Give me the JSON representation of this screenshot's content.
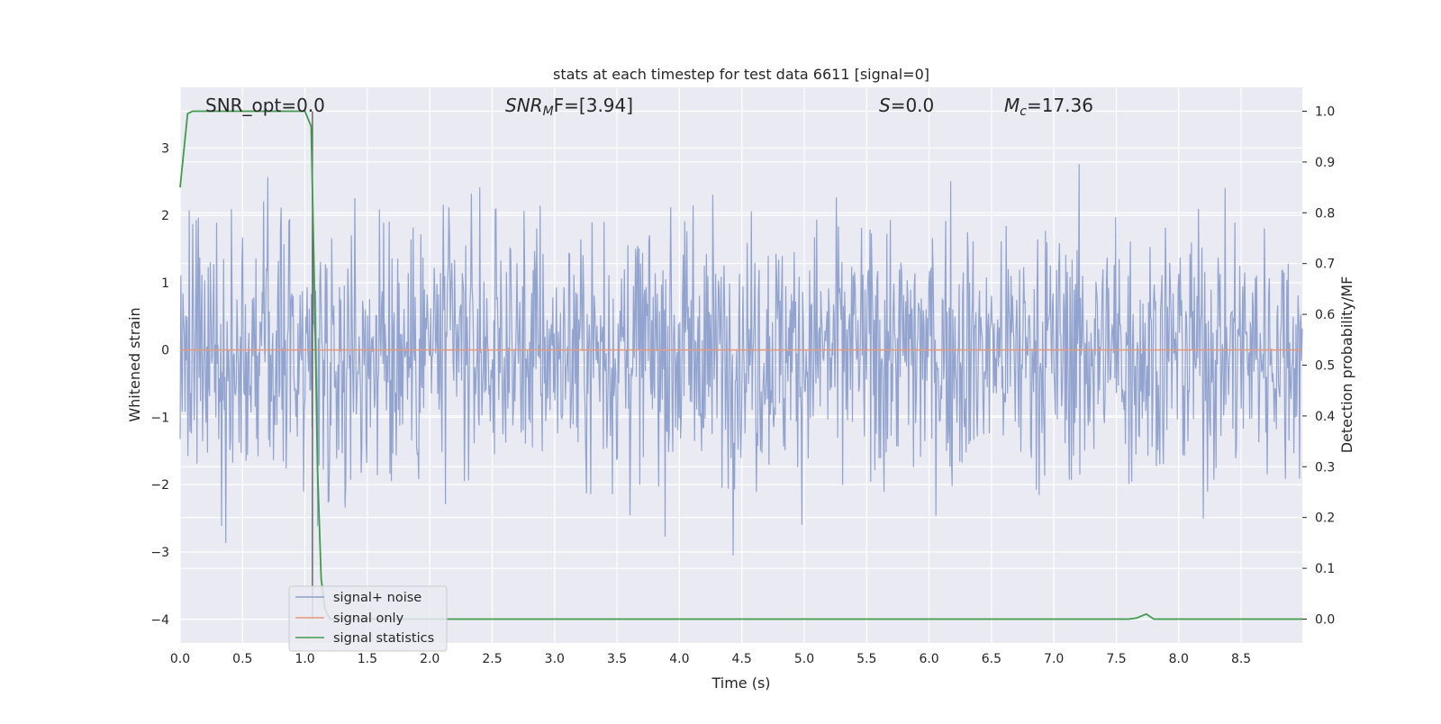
{
  "chart_data": {
    "type": "line",
    "title": "stats at each timestep for test data 6611 [signal=0]",
    "xlabel": "Time (s)",
    "ylabel_left": "Whitened strain",
    "ylabel_right": "Detection probability/MF",
    "xlim": [
      0.0,
      8.99
    ],
    "ylim_left": [
      -4.35,
      3.9
    ],
    "ylim_right": [
      -0.047,
      1.047
    ],
    "x_ticks": [
      "0.0",
      "0.5",
      "1.0",
      "1.5",
      "2.0",
      "2.5",
      "3.0",
      "3.5",
      "4.0",
      "4.5",
      "5.0",
      "5.5",
      "6.0",
      "6.5",
      "7.0",
      "7.5",
      "8.0",
      "8.5"
    ],
    "y_ticks_left": [
      "3",
      "2",
      "1",
      "0",
      "−1",
      "−2",
      "−3",
      "−4"
    ],
    "y_ticks_right": [
      "1.0",
      "0.9",
      "0.8",
      "0.7",
      "0.6",
      "0.5",
      "0.4",
      "0.3",
      "0.2",
      "0.1",
      "0.0"
    ],
    "grid": true,
    "legend_position": "lower-left",
    "annotations": {
      "snr_opt": "SNR_opt=0.0",
      "snr_mf_base": "SNR",
      "snr_mf_sub": "M",
      "snr_mf_rest": "F=[3.94]",
      "s_base": "S",
      "s_rest": "=0.0",
      "mc_base": "M",
      "mc_sub": "c",
      "mc_rest": "=17.36"
    },
    "series": [
      {
        "name": "signal+ noise",
        "axis": "left",
        "color": "#8c9fcb",
        "description_kind": "noise",
        "noise_scale": 1.0,
        "noise_range": [
          -4.0,
          3.55
        ],
        "samples": 1600
      },
      {
        "name": "signal only",
        "axis": "left",
        "color": "#e69a7b",
        "x": [
          0.0,
          8.99
        ],
        "y": [
          0.0,
          0.0
        ]
      },
      {
        "name": "signal statistics",
        "axis": "right",
        "color": "#3f9c4c",
        "x": [
          0.0,
          0.06,
          0.1,
          0.2,
          0.4,
          0.6,
          0.8,
          0.95,
          1.0,
          1.05,
          1.08,
          1.1,
          1.13,
          1.16,
          1.2,
          1.3,
          1.5,
          2.0,
          3.0,
          4.0,
          5.0,
          6.0,
          7.0,
          7.6,
          7.66,
          7.74,
          7.8,
          8.0,
          8.5,
          8.99
        ],
        "y": [
          0.85,
          0.995,
          1.0,
          1.0,
          1.0,
          1.0,
          1.0,
          1.0,
          1.0,
          0.97,
          0.6,
          0.3,
          0.08,
          0.02,
          0.0,
          0.0,
          0.0,
          0.0,
          0.0,
          0.0,
          0.0,
          0.0,
          0.0,
          0.0,
          0.002,
          0.01,
          0.0,
          0.0,
          0.0,
          0.0
        ]
      }
    ],
    "vertical_marker_x": 1.06
  }
}
